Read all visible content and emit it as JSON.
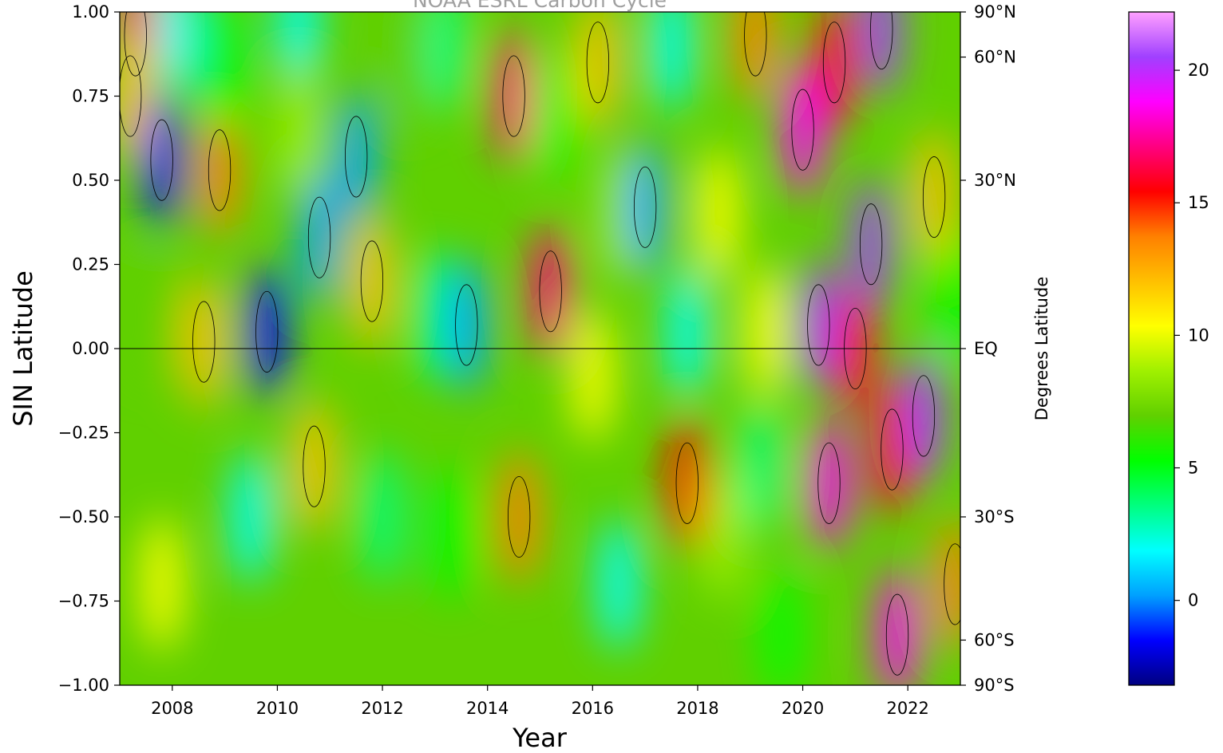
{
  "chart_data": {
    "type": "heatmap",
    "title": "NOAA ESRL Carbon Cycle",
    "xlabel": "Year",
    "ylabel": "SIN Latitude",
    "ylabel_right": "Degrees Latitude",
    "xlim": [
      2007.0,
      2023.0
    ],
    "ylim": [
      -1.0,
      1.0
    ],
    "x_ticks": [
      2008,
      2010,
      2012,
      2014,
      2016,
      2018,
      2020,
      2022
    ],
    "x_tick_labels": [
      "2008",
      "2010",
      "2012",
      "2014",
      "2016",
      "2018",
      "2020",
      "2022"
    ],
    "y_ticks": [
      -1.0,
      -0.75,
      -0.5,
      -0.25,
      0.0,
      0.25,
      0.5,
      0.75,
      1.0
    ],
    "y_tick_labels": [
      "−1.00",
      "−0.75",
      "−0.50",
      "−0.25",
      "0.00",
      "0.25",
      "0.50",
      "0.75",
      "1.00"
    ],
    "right_axis_ticks": [
      {
        "sin": 1.0,
        "label": "90°N"
      },
      {
        "sin": 0.866,
        "label": "60°N"
      },
      {
        "sin": 0.5,
        "label": "30°N"
      },
      {
        "sin": 0.0,
        "label": "EQ"
      },
      {
        "sin": -0.5,
        "label": "30°S"
      },
      {
        "sin": -0.866,
        "label": "60°S"
      },
      {
        "sin": -1.0,
        "label": "90°S"
      }
    ],
    "equator_line": true,
    "colorbar": {
      "colormap": "gist_ncar",
      "vmin": -3.2,
      "vmax": 22.2,
      "ticks": [
        0,
        5,
        10,
        15,
        20
      ],
      "tick_labels": [
        "0",
        "5",
        "10",
        "15",
        "20"
      ],
      "colors": [
        "#000080",
        "#0000ff",
        "#00a0ff",
        "#00ffff",
        "#00ff80",
        "#00ff00",
        "#60d000",
        "#a0f000",
        "#ffff00",
        "#ffc000",
        "#ff8000",
        "#ff0000",
        "#ff0080",
        "#ff00ff",
        "#a040ff",
        "#ffa0ff"
      ]
    },
    "background_value": 6.5,
    "features": [
      {
        "x": 2007.3,
        "y": 0.93,
        "value": 16.5
      },
      {
        "x": 2007.2,
        "y": 0.75,
        "value": 12
      },
      {
        "x": 2007.8,
        "y": 0.56,
        "value": -1
      },
      {
        "x": 2008.9,
        "y": 0.53,
        "value": 14
      },
      {
        "x": 2008.6,
        "y": 0.02,
        "value": 12.5
      },
      {
        "x": 2007.8,
        "y": -0.7,
        "value": 11
      },
      {
        "x": 2007.6,
        "y": 0.1,
        "value": 7
      },
      {
        "x": 2008.1,
        "y": 0.95,
        "value": 2
      },
      {
        "x": 2009.0,
        "y": 0.85,
        "value": 5
      },
      {
        "x": 2009.8,
        "y": 0.05,
        "value": -1.5
      },
      {
        "x": 2009.5,
        "y": -0.5,
        "value": 2.5
      },
      {
        "x": 2010.8,
        "y": 0.33,
        "value": -0.5
      },
      {
        "x": 2010.4,
        "y": 0.95,
        "value": 2
      },
      {
        "x": 2010.4,
        "y": 0.64,
        "value": 8
      },
      {
        "x": 2010.7,
        "y": -0.35,
        "value": 12
      },
      {
        "x": 2011.5,
        "y": 0.57,
        "value": 0.5
      },
      {
        "x": 2011.8,
        "y": 0.2,
        "value": 12
      },
      {
        "x": 2012.0,
        "y": -0.5,
        "value": 3
      },
      {
        "x": 2012.5,
        "y": 0.85,
        "value": 7
      },
      {
        "x": 2013.0,
        "y": 0.1,
        "value": 3
      },
      {
        "x": 2013.6,
        "y": 0.07,
        "value": 0.5
      },
      {
        "x": 2013.3,
        "y": -0.55,
        "value": 6
      },
      {
        "x": 2013.2,
        "y": 0.9,
        "value": 3
      },
      {
        "x": 2014.5,
        "y": 0.75,
        "value": 16.5
      },
      {
        "x": 2014.6,
        "y": -0.5,
        "value": 13
      },
      {
        "x": 2015.2,
        "y": 0.17,
        "value": 17.5
      },
      {
        "x": 2015.3,
        "y": 0.7,
        "value": 6
      },
      {
        "x": 2016.0,
        "y": -0.08,
        "value": 11
      },
      {
        "x": 2016.1,
        "y": 0.85,
        "value": 12
      },
      {
        "x": 2016.5,
        "y": 0.4,
        "value": 9
      },
      {
        "x": 2016.5,
        "y": -0.7,
        "value": 2
      },
      {
        "x": 2017.0,
        "y": 0.42,
        "value": -0.5
      },
      {
        "x": 2017.5,
        "y": 0.9,
        "value": 2
      },
      {
        "x": 2017.8,
        "y": 0.05,
        "value": 1.5
      },
      {
        "x": 2017.8,
        "y": -0.4,
        "value": 16
      },
      {
        "x": 2018.4,
        "y": 0.4,
        "value": 11
      },
      {
        "x": 2018.5,
        "y": -0.55,
        "value": 9
      },
      {
        "x": 2019.1,
        "y": 0.93,
        "value": 14.5
      },
      {
        "x": 2019.2,
        "y": -0.35,
        "value": 4
      },
      {
        "x": 2019.3,
        "y": 0.05,
        "value": 10
      },
      {
        "x": 2019.6,
        "y": -0.85,
        "value": 5
      },
      {
        "x": 2020.0,
        "y": 0.65,
        "value": 19
      },
      {
        "x": 2020.6,
        "y": 0.85,
        "value": 15
      },
      {
        "x": 2020.3,
        "y": 0.07,
        "value": 20
      },
      {
        "x": 2020.5,
        "y": -0.4,
        "value": 18
      },
      {
        "x": 2021.0,
        "y": 0.0,
        "value": 16
      },
      {
        "x": 2021.3,
        "y": 0.31,
        "value": 20.5
      },
      {
        "x": 2021.5,
        "y": 0.95,
        "value": 21
      },
      {
        "x": 2021.7,
        "y": -0.3,
        "value": 15
      },
      {
        "x": 2021.8,
        "y": -0.85,
        "value": 19
      },
      {
        "x": 2022.3,
        "y": -0.2,
        "value": 20.5
      },
      {
        "x": 2022.5,
        "y": 0.45,
        "value": 12
      },
      {
        "x": 2022.9,
        "y": 0.15,
        "value": 6
      },
      {
        "x": 2022.9,
        "y": -0.7,
        "value": 14
      }
    ]
  }
}
